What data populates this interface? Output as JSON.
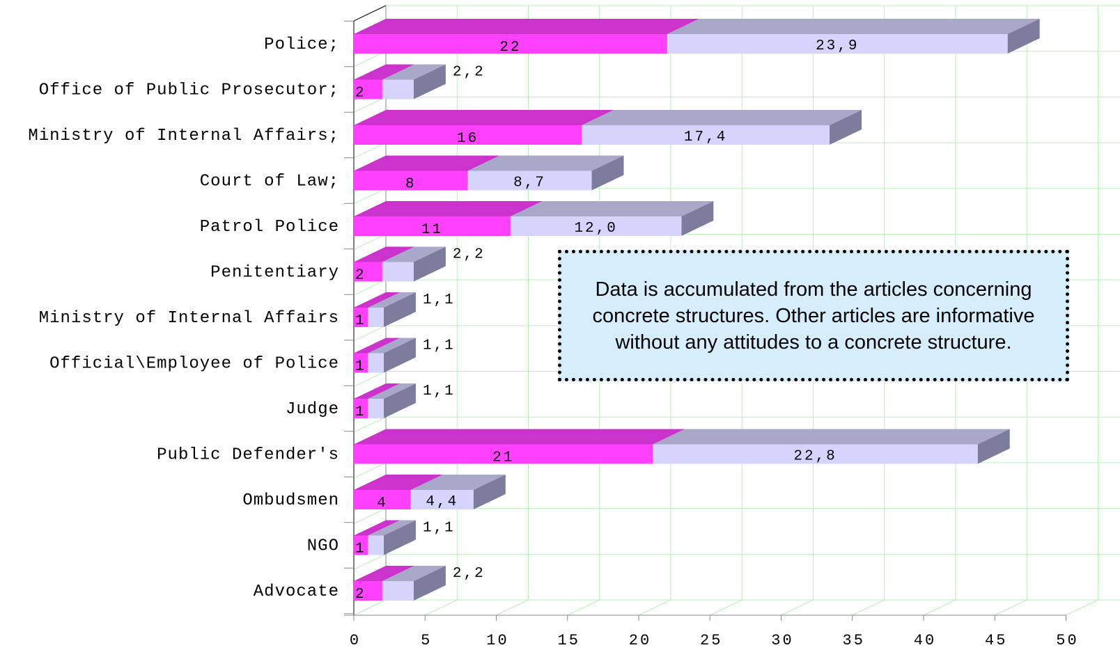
{
  "chart_data": {
    "type": "bar",
    "orientation": "horizontal",
    "stacked": true,
    "three_d": true,
    "categories": [
      "Police;",
      "Office of Public Prosecutor;",
      "Ministry of Internal Affairs;",
      "Court of Law;",
      "Patrol Police",
      "Penitentiary",
      "Ministry of Internal Affairs",
      "Official\\Employee of Police",
      "Judge",
      "Public Defender's",
      "Ombudsmen",
      "NGO",
      "Advocate"
    ],
    "series": [
      {
        "values": [
          22,
          2,
          16,
          8,
          11,
          2,
          1,
          1,
          1,
          21,
          4,
          1,
          2
        ],
        "labels": [
          "22",
          "2",
          "16",
          "8",
          "11",
          "2",
          "1",
          "1",
          "1",
          "21",
          "4",
          "1",
          "2"
        ],
        "color": "#ff40ff",
        "top_color": "#cc33cc"
      },
      {
        "values": [
          23.9,
          2.2,
          17.4,
          8.7,
          12.0,
          2.2,
          1.1,
          1.1,
          1.1,
          22.8,
          4.4,
          1.1,
          2.2
        ],
        "labels": [
          "23,9",
          "2,2",
          "17,4",
          "8,7",
          "12,0",
          "2,2",
          "1,1",
          "1,1",
          "1,1",
          "22,8",
          "4,4",
          "1,1",
          "2,2"
        ],
        "color": "#d4d4fc",
        "top_color": "#a8a8c8",
        "side_color": "#7c7c9c"
      }
    ],
    "x_ticks": [
      "0",
      "5",
      "10",
      "15",
      "20",
      "25",
      "30",
      "35",
      "40",
      "45",
      "50"
    ],
    "xlim": [
      0,
      50
    ],
    "gridlines": true,
    "gridline_color": "#b8f0b8",
    "annotation": "Data is accumulated from the articles concerning concrete structures. Other articles are informative without any attitudes to a  concrete structure."
  }
}
